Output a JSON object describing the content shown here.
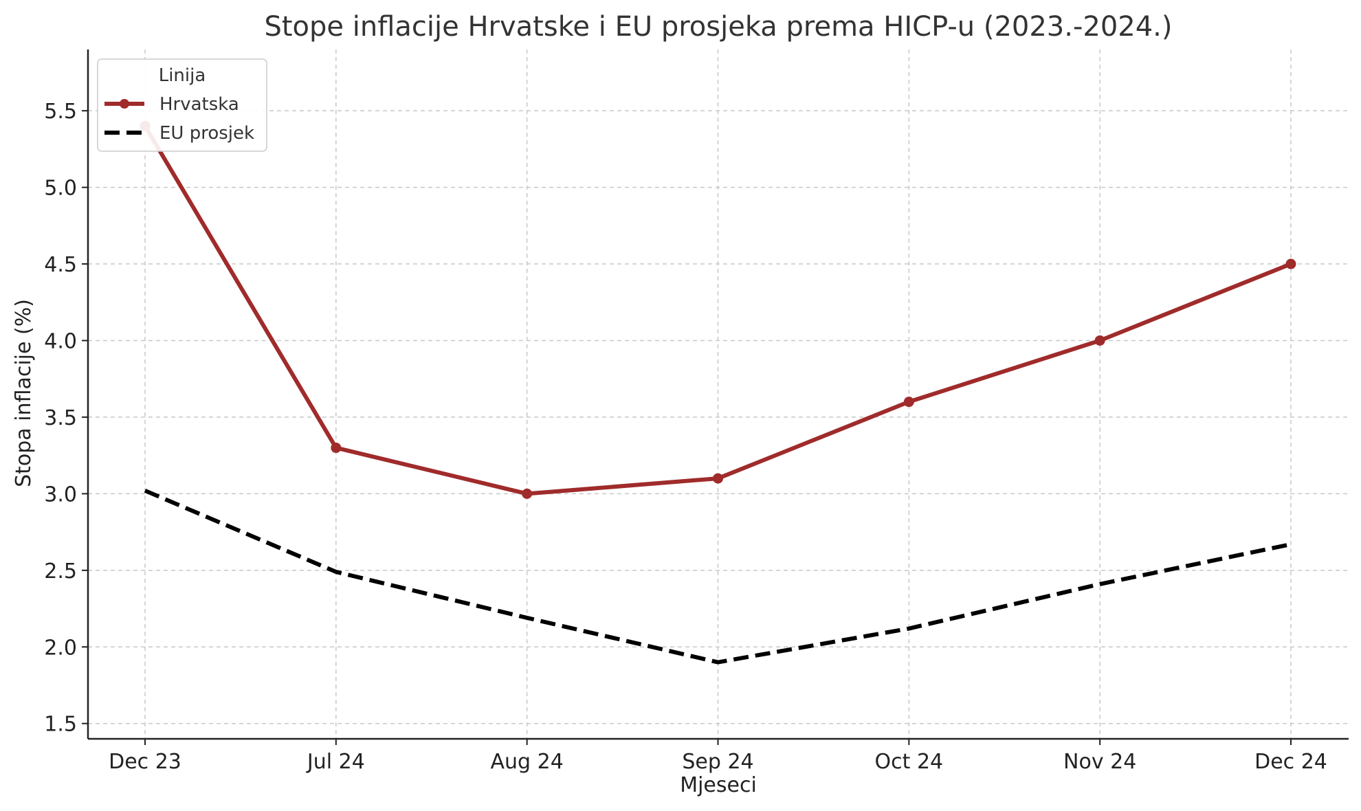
{
  "chart_data": {
    "type": "line",
    "title": "Stope inflacije Hrvatske i EU prosjeka prema HICP-u (2023.-2024.)",
    "xlabel": "Mjeseci",
    "ylabel": "Stopa inflacije (%)",
    "categories": [
      "Dec 23",
      "Jul 24",
      "Aug 24",
      "Sep 24",
      "Oct 24",
      "Nov 24",
      "Dec 24"
    ],
    "ylim": [
      1.4,
      5.9
    ],
    "yticks": [
      "1.5",
      "2.0",
      "2.5",
      "3.0",
      "3.5",
      "4.0",
      "4.5",
      "5.0",
      "5.5"
    ],
    "grid": true,
    "legend": {
      "title": "Linija",
      "placement": "top-left"
    },
    "series": [
      {
        "name": "Hrvatska",
        "values": [
          5.4,
          3.3,
          3.0,
          3.1,
          3.6,
          4.0,
          4.5
        ],
        "color": "#a02b2b",
        "style": "solid",
        "markers": true
      },
      {
        "name": "EU prosjek",
        "values": [
          3.02,
          2.49,
          2.19,
          1.9,
          2.12,
          2.41,
          2.67
        ],
        "color": "#000000",
        "style": "dashed",
        "markers": false
      }
    ]
  }
}
